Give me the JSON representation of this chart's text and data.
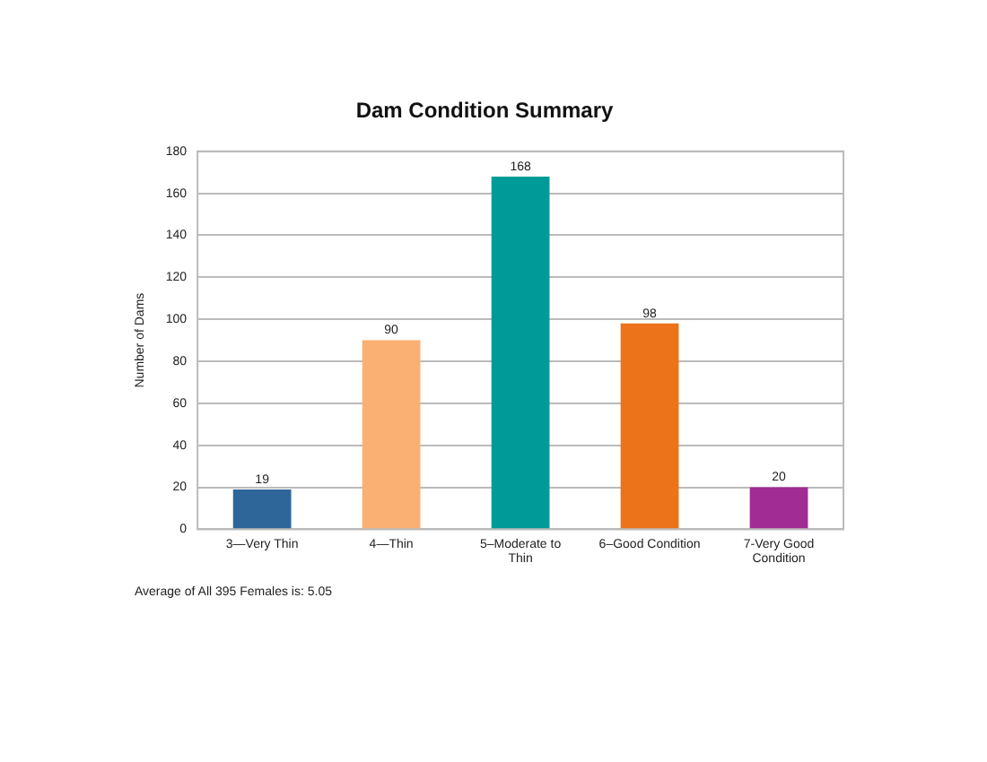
{
  "chart_data": {
    "type": "bar",
    "title": "Dam Condition Summary",
    "ylabel": "Number of Dams",
    "categories": [
      "3—Very Thin",
      "4—Thin",
      "5–Moderate to Thin",
      "6–Good Condition",
      "7-Very Good Condition"
    ],
    "values": [
      19,
      90,
      168,
      98,
      20
    ],
    "colors": [
      "#2e6699",
      "#fbb073",
      "#009b98",
      "#ec7319",
      "#a12c93"
    ],
    "ylim": [
      0,
      180
    ],
    "yticks": [
      0,
      20,
      40,
      60,
      80,
      100,
      120,
      140,
      160,
      180
    ],
    "grid": "y",
    "legend": false,
    "data_labels": true,
    "annotations": [
      "Average of All 395 Females is: 5.05"
    ]
  }
}
